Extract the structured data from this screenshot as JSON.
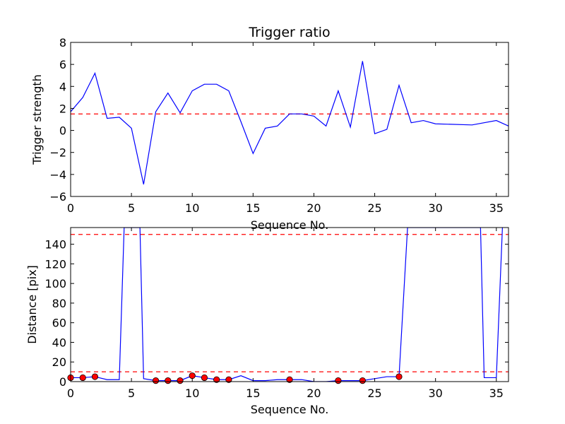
{
  "chart_data": [
    {
      "type": "line",
      "title": "Trigger ratio",
      "xlabel": "Sequence No.",
      "ylabel": "Trigger strength",
      "xlim": [
        0,
        36
      ],
      "ylim": [
        -6,
        8
      ],
      "xticks": [
        "0",
        "5",
        "10",
        "15",
        "20",
        "25",
        "30",
        "35"
      ],
      "yticks": [
        "−6",
        "−4",
        "−2",
        "0",
        "2",
        "4",
        "6",
        "8"
      ],
      "grid": false,
      "series_color": "#0000ff",
      "threshold": {
        "value": 1.5,
        "color": "#ff0000",
        "style": "dashed"
      },
      "series": [
        {
          "x": [
            0,
            1,
            2,
            3,
            4,
            5,
            6,
            7,
            8,
            9,
            10,
            11,
            12,
            13,
            14,
            15,
            16,
            17,
            18,
            19,
            20,
            21,
            22,
            23,
            24,
            25,
            26,
            27,
            28,
            29,
            30,
            33,
            35,
            36
          ],
          "y": [
            1.7,
            3.0,
            5.2,
            1.1,
            1.2,
            0.2,
            -4.9,
            1.7,
            3.4,
            1.6,
            3.6,
            4.2,
            4.2,
            3.6,
            0.8,
            -2.1,
            0.2,
            0.4,
            1.5,
            1.5,
            1.3,
            0.4,
            3.6,
            0.3,
            6.3,
            -0.3,
            0.1,
            4.1,
            0.7,
            0.9,
            0.6,
            0.5,
            0.9,
            0.4
          ]
        }
      ]
    },
    {
      "type": "line",
      "title": "",
      "xlabel": "Sequence No.",
      "ylabel": "Distance [pix]",
      "xlim": [
        0,
        36
      ],
      "ylim": [
        0,
        157
      ],
      "xticks": [
        "0",
        "5",
        "10",
        "15",
        "20",
        "25",
        "30",
        "35"
      ],
      "yticks": [
        "0",
        "20",
        "40",
        "60",
        "80",
        "100",
        "120",
        "140"
      ],
      "grid": false,
      "series_color": "#0000ff",
      "marker_color": "#ff0000",
      "thresholds": [
        {
          "value": 10,
          "color": "#ff0000",
          "style": "dashed"
        },
        {
          "value": 150,
          "color": "#ff0000",
          "style": "dashed"
        }
      ],
      "series": [
        {
          "x": [
            0,
            1,
            2,
            3,
            4,
            4.4,
            5.7,
            6,
            7,
            8,
            9,
            10,
            11,
            12,
            13,
            14,
            15,
            16,
            17,
            18,
            19,
            20,
            21,
            22,
            23,
            24,
            25,
            26,
            27,
            27.7,
            33.7,
            34,
            35,
            35.5
          ],
          "y": [
            4,
            4,
            5,
            2,
            2,
            157,
            157,
            3,
            1,
            1,
            1,
            6,
            4,
            2,
            2,
            6,
            1,
            1,
            2,
            2,
            2,
            0,
            0,
            1,
            1,
            1,
            3,
            5,
            5,
            157,
            157,
            4,
            4,
            157
          ]
        }
      ],
      "markers": {
        "x": [
          0,
          1,
          2,
          7,
          8,
          9,
          10,
          11,
          12,
          13,
          18,
          22,
          24,
          27
        ],
        "y": [
          4,
          4,
          5,
          1,
          1,
          1,
          6,
          4,
          2,
          2,
          2,
          1,
          1,
          5
        ]
      }
    }
  ]
}
